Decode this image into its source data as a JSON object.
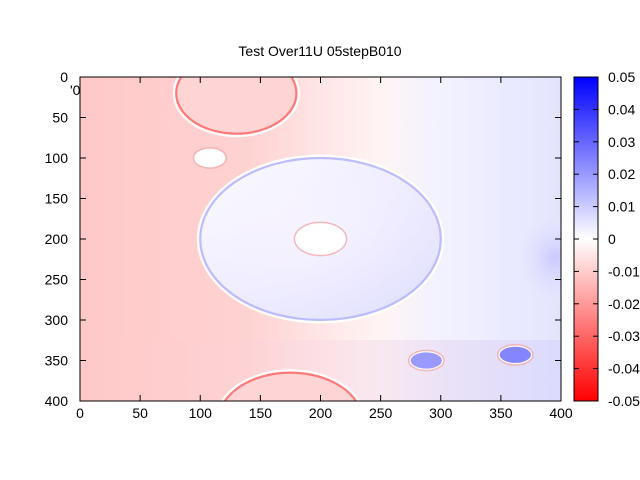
{
  "chart_data": {
    "type": "heatmap",
    "title": "Test Over11U 05stepB010",
    "xlabel": "",
    "ylabel": "",
    "xlim": [
      0,
      400
    ],
    "ylim": [
      0,
      400
    ],
    "y_reversed": true,
    "x_ticks": [
      0,
      50,
      100,
      150,
      200,
      250,
      300,
      350,
      400
    ],
    "y_ticks": [
      0,
      50,
      100,
      150,
      200,
      250,
      300,
      350,
      400
    ],
    "colorbar": {
      "range": [
        -0.05,
        0.05
      ],
      "ticks": [
        0.05,
        0.04,
        0.03,
        0.02,
        0.01,
        0,
        -0.01,
        -0.02,
        -0.03,
        -0.04,
        -0.05
      ],
      "tick_labels": [
        "0.05",
        "0.04",
        "0.03",
        "0.02",
        "0.01",
        "0",
        "-0.01",
        "-0.02",
        "-0.03",
        "-0.04",
        "-0.05"
      ],
      "colors": {
        "min": "#ff0000",
        "mid": "#ffffff",
        "max": "#0000ff"
      }
    },
    "grid": false,
    "legend": "colorbar-right",
    "features": [
      {
        "kind": "ring",
        "cx": 130,
        "cy": 20,
        "rx": 50,
        "ry": 50,
        "value": -0.03
      },
      {
        "kind": "spot",
        "cx": 108,
        "cy": 100,
        "rx": 12,
        "ry": 10,
        "value": 0.0
      },
      {
        "kind": "ring",
        "cx": 200,
        "cy": 200,
        "rx": 100,
        "ry": 100,
        "value": 0.015
      },
      {
        "kind": "spot",
        "cx": 200,
        "cy": 200,
        "rx": 20,
        "ry": 18,
        "value": 0.0
      },
      {
        "kind": "ring",
        "cx": 175,
        "cy": 425,
        "rx": 60,
        "ry": 60,
        "value": -0.03
      },
      {
        "kind": "spot",
        "cx": 288,
        "cy": 350,
        "rx": 13,
        "ry": 10,
        "value": 0.025
      },
      {
        "kind": "spot",
        "cx": 362,
        "cy": 343,
        "rx": 13,
        "ry": 10,
        "value": 0.03
      }
    ]
  },
  "artifact": "'0"
}
